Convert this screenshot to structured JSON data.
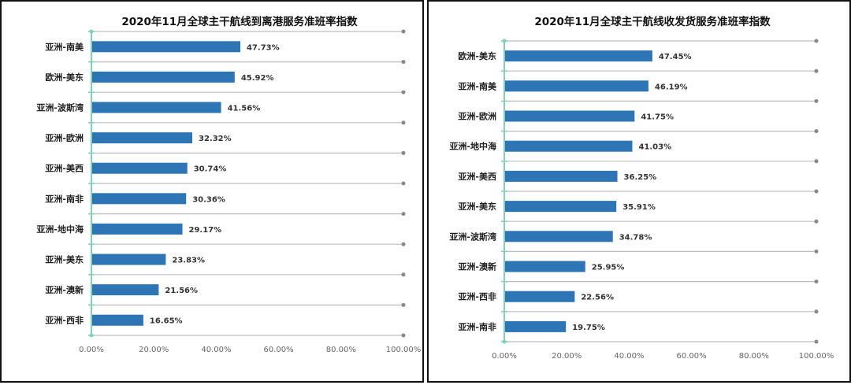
{
  "chart_data": [
    {
      "type": "bar",
      "orientation": "horizontal",
      "title": "2020年11月全球主干航线到离港服务准班率指数",
      "categories": [
        "亚洲-南美",
        "欧洲-美东",
        "亚洲-波斯湾",
        "亚洲-欧洲",
        "亚洲-美西",
        "亚洲-南非",
        "亚洲-地中海",
        "亚洲-美东",
        "亚洲-澳新",
        "亚洲-西非"
      ],
      "values": [
        47.73,
        45.92,
        41.56,
        32.32,
        30.74,
        30.36,
        29.17,
        23.83,
        21.56,
        16.65
      ],
      "value_labels": [
        "47.73%",
        "45.92%",
        "41.56%",
        "32.32%",
        "30.74%",
        "30.36%",
        "29.17%",
        "23.83%",
        "21.56%",
        "16.65%"
      ],
      "xlim": [
        0,
        100
      ],
      "xticks": [
        "0.00%",
        "20.00%",
        "40.00%",
        "60.00%",
        "80.00%",
        "100.00%"
      ],
      "grid": true,
      "bar_color": "#2e75b6",
      "axis_color": "#7fd1b9"
    },
    {
      "type": "bar",
      "orientation": "horizontal",
      "title": "2020年11月全球主干航线收发货服务准班率指数",
      "categories": [
        "欧洲-美东",
        "亚洲-南美",
        "亚洲-欧洲",
        "亚洲-地中海",
        "亚洲-美西",
        "亚洲-美东",
        "亚洲-波斯湾",
        "亚洲-澳新",
        "亚洲-西非",
        "亚洲-南非"
      ],
      "values": [
        47.45,
        46.19,
        41.75,
        41.03,
        36.25,
        35.91,
        34.78,
        25.95,
        22.56,
        19.75
      ],
      "value_labels": [
        "47.45%",
        "46.19%",
        "41.75%",
        "41.03%",
        "36.25%",
        "35.91%",
        "34.78%",
        "25.95%",
        "22.56%",
        "19.75%"
      ],
      "xlim": [
        0,
        100
      ],
      "xticks": [
        "0.00%",
        "20.00%",
        "40.00%",
        "60.00%",
        "80.00%",
        "100.00%"
      ],
      "grid": true,
      "bar_color": "#2e75b6",
      "axis_color": "#7fd1b9"
    }
  ]
}
